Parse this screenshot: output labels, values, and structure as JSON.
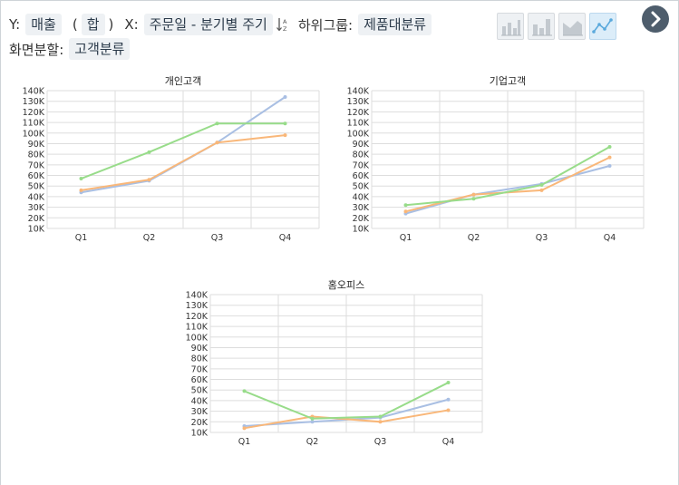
{
  "toolbar": {
    "y_label": "Y:",
    "y_value": "매출",
    "agg_value": "합",
    "x_label": "X:",
    "x_value": "주문일 - 분기별 주기",
    "subgroup_label": "하위그룹:",
    "subgroup_value": "제품대분류",
    "split_label": "화면분할:",
    "split_value": "고객분류",
    "chart_type_buttons": [
      "bar-chart-icon",
      "stacked-bar-chart-icon",
      "area-chart-icon",
      "line-chart-icon"
    ],
    "active_chart_type": "line-chart-icon",
    "next_icon": "chevron-right-icon"
  },
  "colors": {
    "series": [
      "#a9bfe3",
      "#f9b779",
      "#98dc8a"
    ],
    "grid": "#dddddd",
    "axis_text": "#333333",
    "accent": "#4e5d6c"
  },
  "chart_data": [
    {
      "type": "line",
      "title": "개인고객",
      "categories": [
        "Q1",
        "Q2",
        "Q3",
        "Q4"
      ],
      "yticks": [
        "10K",
        "20K",
        "30K",
        "40K",
        "50K",
        "60K",
        "70K",
        "80K",
        "90K",
        "100K",
        "110K",
        "120K",
        "130K",
        "140K"
      ],
      "ylim": [
        10000,
        140000
      ],
      "grid": true,
      "series": [
        {
          "values": [
            44000,
            55000,
            91000,
            134000
          ]
        },
        {
          "values": [
            46000,
            56000,
            91000,
            98000
          ]
        },
        {
          "values": [
            57000,
            82000,
            109000,
            109000
          ]
        }
      ]
    },
    {
      "type": "line",
      "title": "기업고객",
      "categories": [
        "Q1",
        "Q2",
        "Q3",
        "Q4"
      ],
      "yticks": [
        "10K",
        "20K",
        "30K",
        "40K",
        "50K",
        "60K",
        "70K",
        "80K",
        "90K",
        "100K",
        "110K",
        "120K",
        "130K",
        "140K"
      ],
      "ylim": [
        10000,
        140000
      ],
      "grid": true,
      "series": [
        {
          "values": [
            24000,
            42000,
            52000,
            69000
          ]
        },
        {
          "values": [
            26000,
            42000,
            46000,
            77000
          ]
        },
        {
          "values": [
            32000,
            38000,
            51000,
            87000
          ]
        }
      ]
    },
    {
      "type": "line",
      "title": "홈오피스",
      "categories": [
        "Q1",
        "Q2",
        "Q3",
        "Q4"
      ],
      "yticks": [
        "10K",
        "20K",
        "30K",
        "40K",
        "50K",
        "60K",
        "70K",
        "80K",
        "90K",
        "100K",
        "110K",
        "120K",
        "130K",
        "140K"
      ],
      "ylim": [
        10000,
        140000
      ],
      "grid": true,
      "series": [
        {
          "values": [
            16000,
            20000,
            24000,
            41000
          ]
        },
        {
          "values": [
            14000,
            25000,
            20000,
            31000
          ]
        },
        {
          "values": [
            49000,
            23000,
            25000,
            57000
          ]
        }
      ]
    }
  ]
}
